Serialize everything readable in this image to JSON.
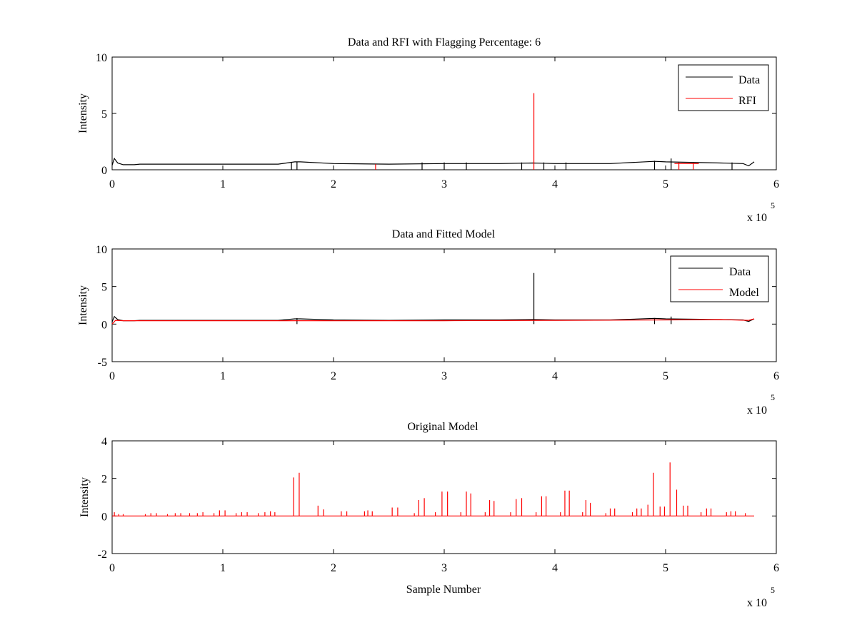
{
  "figure": {
    "background": "#ffffff",
    "panel_face": "#ffffff"
  },
  "chart_data": [
    {
      "type": "line",
      "title": "Data and RFI with Flagging Percentage: 6",
      "xlabel": "",
      "ylabel": "Intensity",
      "xlim": [
        0,
        6
      ],
      "ylim": [
        0,
        10
      ],
      "xticks": [
        "0",
        "1",
        "2",
        "3",
        "4",
        "5",
        "6"
      ],
      "yticks": [
        "0",
        "5",
        "10"
      ],
      "x_multiplier": {
        "base": "x 10",
        "exponent": "5"
      },
      "legend": {
        "position": "top-right"
      },
      "series": [
        {
          "name": "Data",
          "color": "#000000",
          "x": [
            0,
            0.02,
            0.05,
            0.1,
            0.2,
            0.25,
            1,
            1.5,
            1.65,
            1.7,
            2,
            2.5,
            3,
            3.5,
            3.8,
            4,
            4.5,
            4.9,
            5,
            5.5,
            5.7,
            5.75,
            5.8
          ],
          "y": [
            0.4,
            1.0,
            0.6,
            0.45,
            0.45,
            0.5,
            0.5,
            0.5,
            0.7,
            0.7,
            0.55,
            0.5,
            0.55,
            0.55,
            0.6,
            0.55,
            0.55,
            0.75,
            0.7,
            0.6,
            0.55,
            0.35,
            0.7
          ],
          "spikes": [
            {
              "x": 1.62,
              "y": 0.65
            },
            {
              "x": 1.67,
              "y": 0.7
            },
            {
              "x": 2.8,
              "y": 0.65
            },
            {
              "x": 3.0,
              "y": 0.65
            },
            {
              "x": 3.2,
              "y": 0.65
            },
            {
              "x": 3.7,
              "y": 0.65
            },
            {
              "x": 3.9,
              "y": 0.65
            },
            {
              "x": 4.1,
              "y": 0.65
            },
            {
              "x": 4.9,
              "y": 0.8
            },
            {
              "x": 5.05,
              "y": 1.0
            },
            {
              "x": 5.6,
              "y": 0.65
            }
          ]
        },
        {
          "name": "RFI",
          "color": "#ff0000",
          "x": [
            5.08,
            5.3
          ],
          "y": [
            0.55,
            0.55
          ],
          "spikes": [
            {
              "x": 3.81,
              "y": 6.8
            },
            {
              "x": 2.38,
              "y": 0.5
            },
            {
              "x": 5.12,
              "y": 0.65
            },
            {
              "x": 5.25,
              "y": 0.6
            }
          ]
        }
      ]
    },
    {
      "type": "line",
      "title": "Data and Fitted Model",
      "xlabel": "",
      "ylabel": "Intensity",
      "xlim": [
        0,
        6
      ],
      "ylim": [
        -5,
        10
      ],
      "xticks": [
        "0",
        "1",
        "2",
        "3",
        "4",
        "5",
        "6"
      ],
      "yticks": [
        "-5",
        "0",
        "5",
        "10"
      ],
      "x_multiplier": {
        "base": "x 10",
        "exponent": "5"
      },
      "legend": {
        "position": "top-right"
      },
      "series": [
        {
          "name": "Data",
          "color": "#000000",
          "x": [
            0,
            0.02,
            0.05,
            0.1,
            0.2,
            0.25,
            1,
            1.5,
            1.65,
            1.7,
            2,
            2.5,
            3,
            3.5,
            3.8,
            4,
            4.5,
            4.9,
            5,
            5.5,
            5.7,
            5.75,
            5.8
          ],
          "y": [
            0.3,
            1.0,
            0.6,
            0.45,
            0.45,
            0.5,
            0.5,
            0.5,
            0.7,
            0.7,
            0.55,
            0.5,
            0.55,
            0.55,
            0.6,
            0.55,
            0.55,
            0.75,
            0.7,
            0.6,
            0.55,
            0.35,
            0.7
          ],
          "spikes": [
            {
              "x": 3.81,
              "y": 6.8
            },
            {
              "x": 1.67,
              "y": 0.8
            },
            {
              "x": 5.05,
              "y": 1.0
            },
            {
              "x": 4.9,
              "y": 0.8
            }
          ]
        },
        {
          "name": "Model",
          "color": "#ff0000",
          "x": [
            0,
            0.03,
            0.1,
            0.5,
            1,
            2,
            3,
            4,
            5,
            5.5,
            5.75,
            5.8
          ],
          "y": [
            0.0,
            0.5,
            0.45,
            0.45,
            0.45,
            0.45,
            0.45,
            0.5,
            0.55,
            0.6,
            0.5,
            0.7
          ],
          "spikes": []
        }
      ]
    },
    {
      "type": "line",
      "title": "Original Model",
      "xlabel": "Sample Number",
      "ylabel": "Intensity",
      "xlim": [
        0,
        6
      ],
      "ylim": [
        -2,
        4
      ],
      "xticks": [
        "0",
        "1",
        "2",
        "3",
        "4",
        "5",
        "6"
      ],
      "yticks": [
        "-2",
        "0",
        "2",
        "4"
      ],
      "x_multiplier": {
        "base": "x 10",
        "exponent": "5"
      },
      "legend": null,
      "series": [
        {
          "name": "",
          "color": "#ff0000",
          "x": [
            0,
            5.8
          ],
          "y": [
            0,
            0
          ],
          "spikes": [
            {
              "x": 0.02,
              "y": 0.2
            },
            {
              "x": 0.06,
              "y": 0.1
            },
            {
              "x": 0.1,
              "y": 0.1
            },
            {
              "x": 0.3,
              "y": 0.1
            },
            {
              "x": 0.35,
              "y": 0.15
            },
            {
              "x": 0.4,
              "y": 0.15
            },
            {
              "x": 0.5,
              "y": 0.1
            },
            {
              "x": 0.57,
              "y": 0.15
            },
            {
              "x": 0.62,
              "y": 0.15
            },
            {
              "x": 0.7,
              "y": 0.15
            },
            {
              "x": 0.77,
              "y": 0.15
            },
            {
              "x": 0.82,
              "y": 0.2
            },
            {
              "x": 0.92,
              "y": 0.15
            },
            {
              "x": 0.97,
              "y": 0.3
            },
            {
              "x": 1.02,
              "y": 0.3
            },
            {
              "x": 1.12,
              "y": 0.15
            },
            {
              "x": 1.17,
              "y": 0.2
            },
            {
              "x": 1.22,
              "y": 0.2
            },
            {
              "x": 1.32,
              "y": 0.15
            },
            {
              "x": 1.38,
              "y": 0.2
            },
            {
              "x": 1.43,
              "y": 0.25
            },
            {
              "x": 1.47,
              "y": 0.2
            },
            {
              "x": 1.64,
              "y": 2.05
            },
            {
              "x": 1.69,
              "y": 2.3
            },
            {
              "x": 1.86,
              "y": 0.55
            },
            {
              "x": 1.91,
              "y": 0.35
            },
            {
              "x": 2.07,
              "y": 0.25
            },
            {
              "x": 2.12,
              "y": 0.25
            },
            {
              "x": 2.28,
              "y": 0.25
            },
            {
              "x": 2.31,
              "y": 0.3
            },
            {
              "x": 2.35,
              "y": 0.25
            },
            {
              "x": 2.53,
              "y": 0.45
            },
            {
              "x": 2.58,
              "y": 0.45
            },
            {
              "x": 2.73,
              "y": 0.15
            },
            {
              "x": 2.77,
              "y": 0.85
            },
            {
              "x": 2.82,
              "y": 0.95
            },
            {
              "x": 2.92,
              "y": 0.2
            },
            {
              "x": 2.98,
              "y": 1.3
            },
            {
              "x": 3.03,
              "y": 1.3
            },
            {
              "x": 3.15,
              "y": 0.2
            },
            {
              "x": 3.2,
              "y": 1.3
            },
            {
              "x": 3.24,
              "y": 1.2
            },
            {
              "x": 3.37,
              "y": 0.2
            },
            {
              "x": 3.41,
              "y": 0.85
            },
            {
              "x": 3.45,
              "y": 0.8
            },
            {
              "x": 3.6,
              "y": 0.2
            },
            {
              "x": 3.65,
              "y": 0.9
            },
            {
              "x": 3.7,
              "y": 0.95
            },
            {
              "x": 3.83,
              "y": 0.2
            },
            {
              "x": 3.88,
              "y": 1.05
            },
            {
              "x": 3.92,
              "y": 1.05
            },
            {
              "x": 4.05,
              "y": 0.2
            },
            {
              "x": 4.09,
              "y": 1.35
            },
            {
              "x": 4.13,
              "y": 1.35
            },
            {
              "x": 4.25,
              "y": 0.2
            },
            {
              "x": 4.28,
              "y": 0.85
            },
            {
              "x": 4.32,
              "y": 0.7
            },
            {
              "x": 4.46,
              "y": 0.15
            },
            {
              "x": 4.5,
              "y": 0.4
            },
            {
              "x": 4.54,
              "y": 0.4
            },
            {
              "x": 4.7,
              "y": 0.2
            },
            {
              "x": 4.74,
              "y": 0.4
            },
            {
              "x": 4.78,
              "y": 0.4
            },
            {
              "x": 4.84,
              "y": 0.6
            },
            {
              "x": 4.89,
              "y": 2.3
            },
            {
              "x": 4.95,
              "y": 0.5
            },
            {
              "x": 4.99,
              "y": 0.5
            },
            {
              "x": 5.04,
              "y": 2.85
            },
            {
              "x": 5.1,
              "y": 1.4
            },
            {
              "x": 5.16,
              "y": 0.55
            },
            {
              "x": 5.2,
              "y": 0.55
            },
            {
              "x": 5.32,
              "y": 0.2
            },
            {
              "x": 5.37,
              "y": 0.4
            },
            {
              "x": 5.41,
              "y": 0.4
            },
            {
              "x": 5.55,
              "y": 0.2
            },
            {
              "x": 5.59,
              "y": 0.25
            },
            {
              "x": 5.63,
              "y": 0.25
            },
            {
              "x": 5.72,
              "y": 0.15
            }
          ]
        }
      ]
    }
  ]
}
